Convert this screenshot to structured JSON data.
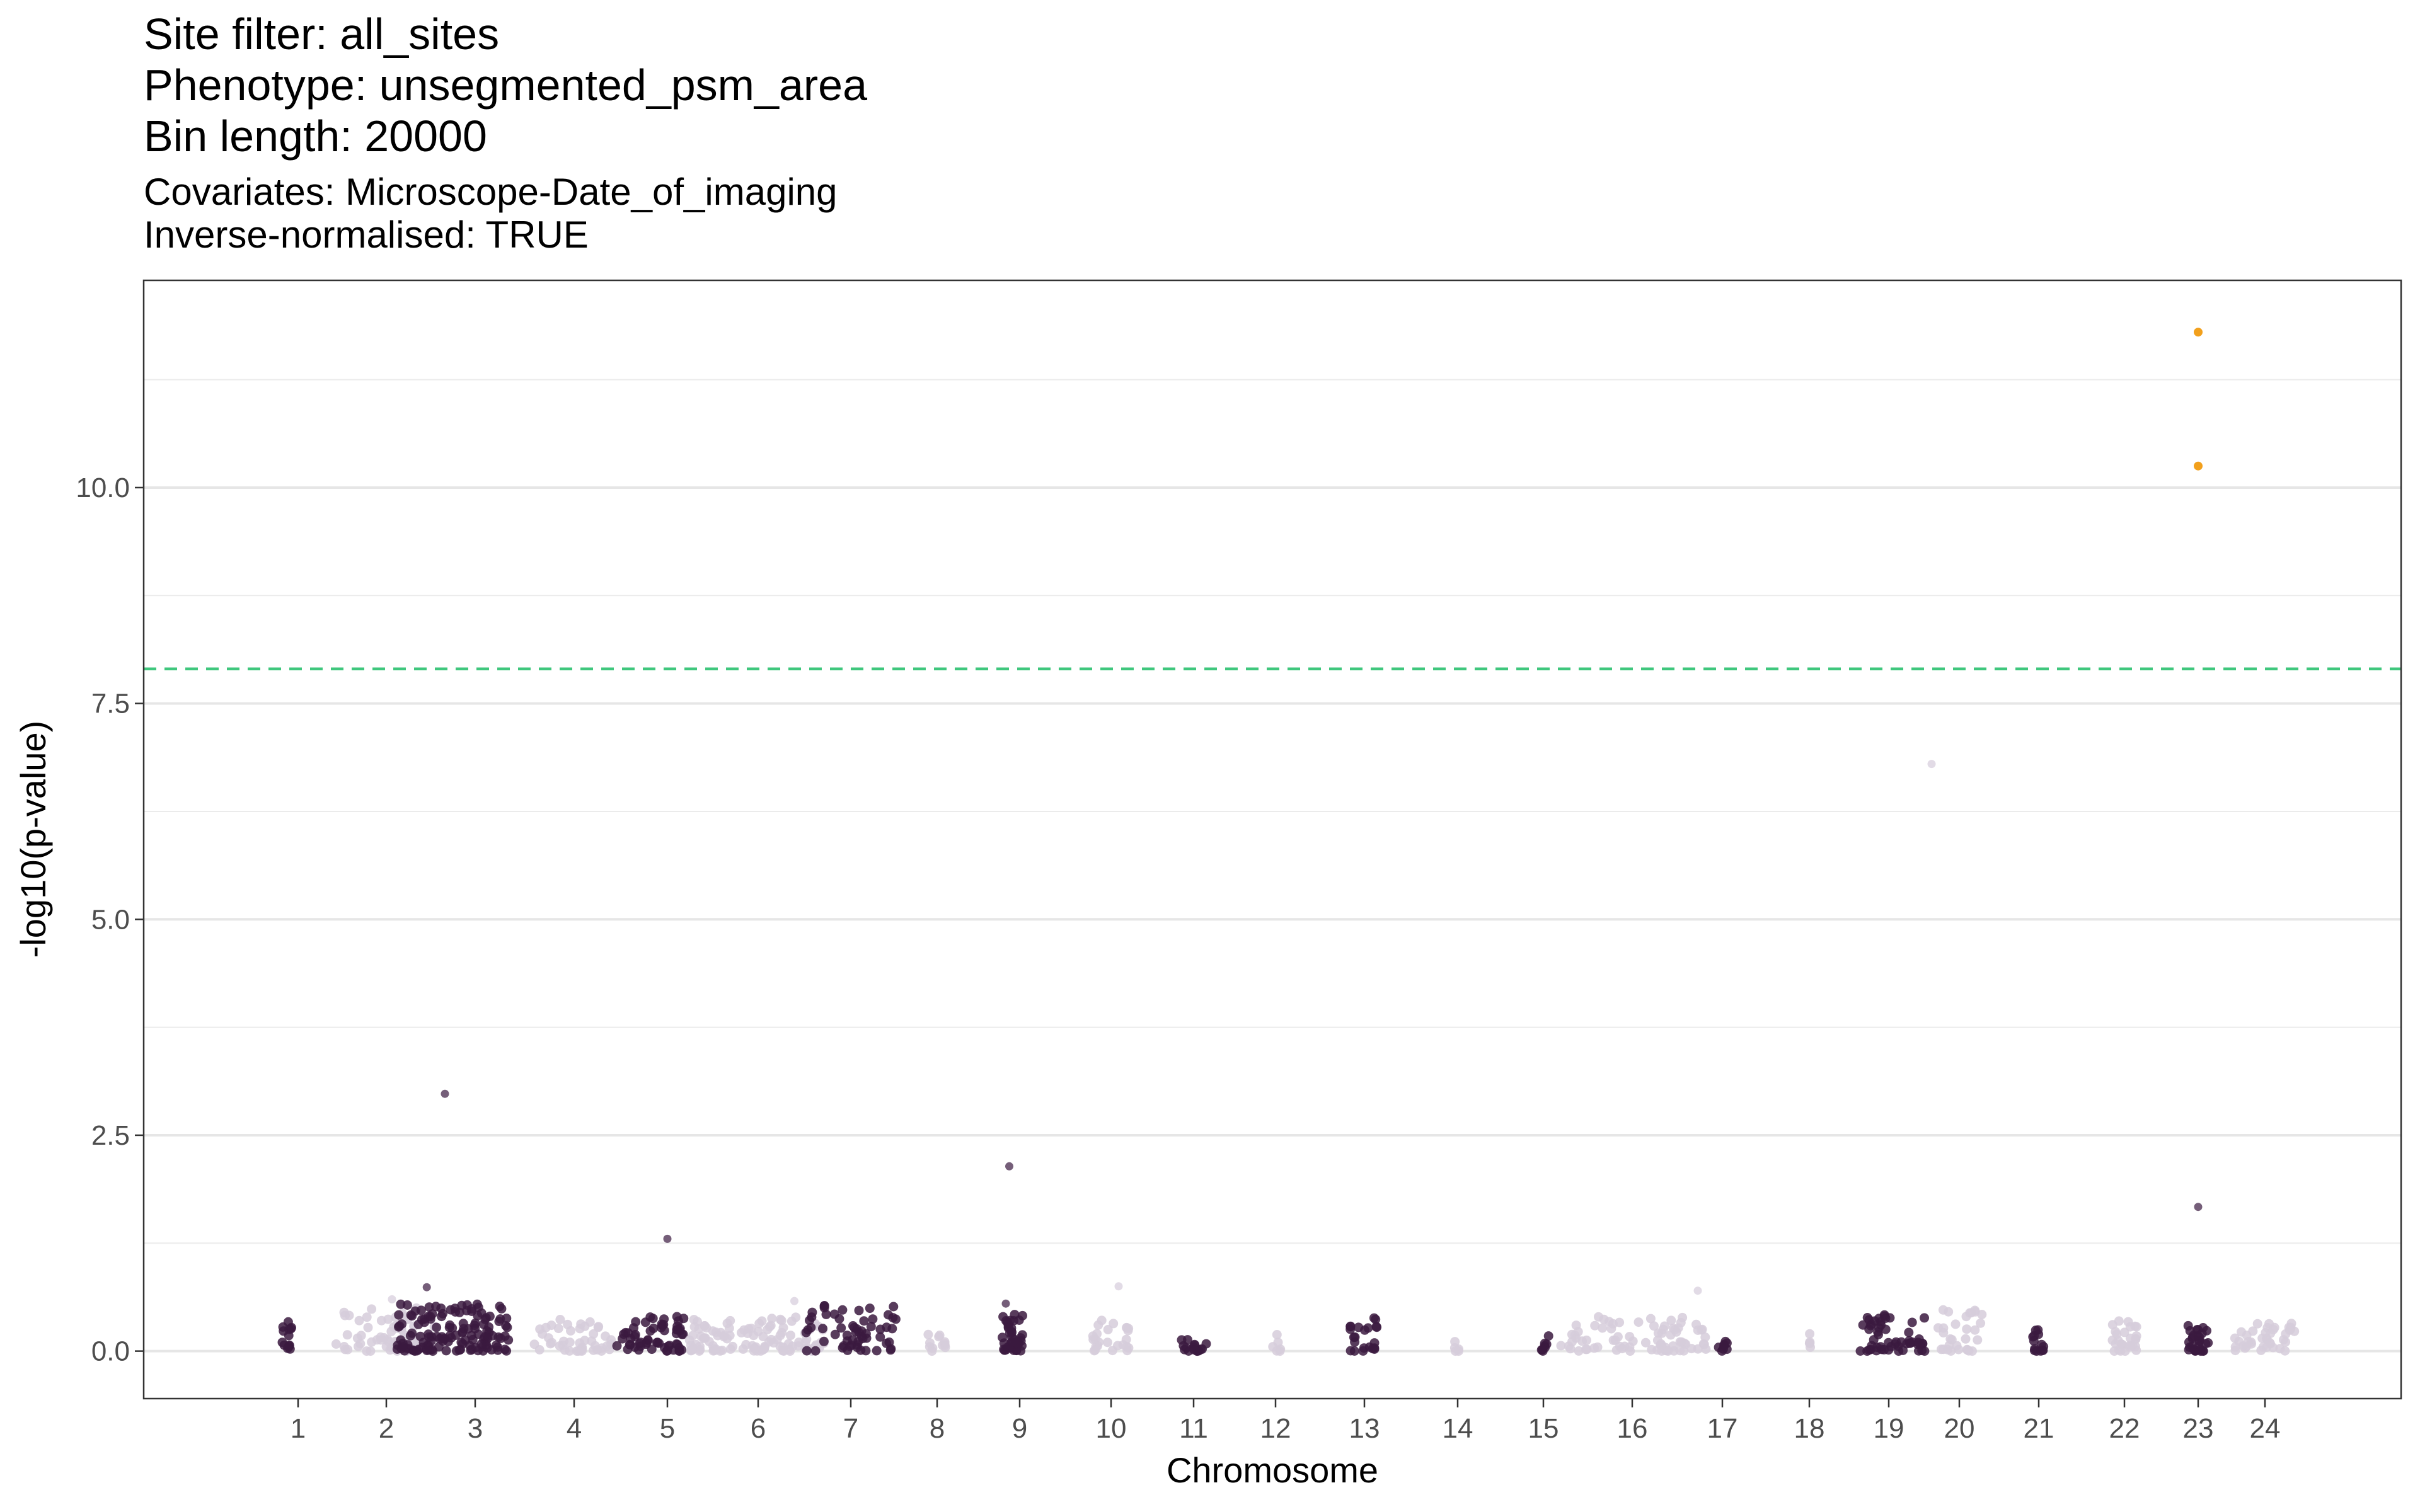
{
  "chart_data": {
    "type": "scatter",
    "title_lines": [
      "Site filter: all_sites",
      "Phenotype: unsegmented_psm_area",
      "Bin length: 20000"
    ],
    "subtitle_lines": [
      "Covariates: Microscope-Date_of_imaging",
      "Inverse-normalised: TRUE"
    ],
    "xlabel": "Chromosome",
    "ylabel": "-log10(p-value)",
    "x_tick_labels": [
      "1",
      "2",
      "3",
      "4",
      "5",
      "6",
      "7",
      "8",
      "9",
      "10",
      "11",
      "12",
      "13",
      "14",
      "15",
      "16",
      "17",
      "18",
      "19",
      "20",
      "21",
      "22",
      "23",
      "24"
    ],
    "y_ticks": [
      0.0,
      2.5,
      5.0,
      7.5,
      10.0
    ],
    "y_tick_labels": [
      "0.0",
      "2.5",
      "5.0",
      "7.5",
      "10.0"
    ],
    "ylim": [
      -0.55,
      12.4
    ],
    "grid": true,
    "threshold_line": {
      "y": 7.9,
      "color": "#3fc77d",
      "style": "dashed"
    },
    "colors": {
      "dark": "#3b1a40",
      "light": "#d6ccdb",
      "highlight": "#f2a01c"
    },
    "chromosomes": [
      {
        "chr": "1",
        "clusters": [
          {
            "x": 0.3,
            "w": 0.2,
            "n": 14,
            "max": 0.34
          }
        ],
        "outliers": []
      },
      {
        "chr": "2",
        "clusters": [
          {
            "x": 0.62,
            "w": 0.35,
            "n": 35,
            "max": 0.33
          },
          {
            "x": 0.5,
            "w": 0.9,
            "n": 40,
            "max": 0.5
          }
        ],
        "outliers": [
          {
            "x": 0.55,
            "y": 0.6
          }
        ]
      },
      {
        "chr": "3",
        "clusters": [
          {
            "x": 0.35,
            "w": 0.75,
            "n": 140,
            "max": 0.55
          }
        ],
        "outliers": [
          {
            "x": 0.3,
            "y": 2.98
          },
          {
            "x": 0.18,
            "y": 0.74
          }
        ]
      },
      {
        "chr": "4",
        "clusters": [
          {
            "x": 0.5,
            "w": 0.85,
            "n": 45,
            "max": 0.38
          }
        ],
        "outliers": []
      },
      {
        "chr": "5",
        "clusters": [
          {
            "x": 0.35,
            "w": 0.6,
            "n": 60,
            "max": 0.4
          }
        ],
        "outliers": [
          {
            "x": 0.5,
            "y": 1.3
          }
        ]
      },
      {
        "chr": "6",
        "clusters": [
          {
            "x": 0.5,
            "w": 0.95,
            "n": 110,
            "max": 0.42
          }
        ],
        "outliers": [
          {
            "x": 0.75,
            "y": 0.58
          }
        ]
      },
      {
        "chr": "7",
        "clusters": [
          {
            "x": 0.5,
            "w": 0.8,
            "n": 60,
            "max": 0.55
          }
        ],
        "outliers": []
      },
      {
        "chr": "8",
        "clusters": [
          {
            "x": 0.5,
            "w": 0.5,
            "n": 12,
            "max": 0.25
          }
        ],
        "outliers": []
      },
      {
        "chr": "9",
        "clusters": [
          {
            "x": 0.4,
            "w": 0.3,
            "n": 40,
            "max": 0.45
          }
        ],
        "outliers": [
          {
            "x": 0.35,
            "y": 2.14
          },
          {
            "x": 0.3,
            "y": 0.55
          }
        ]
      },
      {
        "chr": "10",
        "clusters": [
          {
            "x": 0.5,
            "w": 0.5,
            "n": 25,
            "max": 0.38
          }
        ],
        "outliers": [
          {
            "x": 0.6,
            "y": 0.75
          }
        ]
      },
      {
        "chr": "11",
        "clusters": [
          {
            "x": 0.5,
            "w": 0.5,
            "n": 16,
            "max": 0.15
          }
        ],
        "outliers": []
      },
      {
        "chr": "12",
        "clusters": [
          {
            "x": 0.5,
            "w": 0.3,
            "n": 6,
            "max": 0.2
          }
        ],
        "outliers": []
      },
      {
        "chr": "13",
        "clusters": [
          {
            "x": 0.5,
            "w": 0.6,
            "n": 22,
            "max": 0.42
          }
        ],
        "outliers": []
      },
      {
        "chr": "14",
        "clusters": [
          {
            "x": 0.5,
            "w": 0.25,
            "n": 5,
            "max": 0.12
          }
        ],
        "outliers": []
      },
      {
        "chr": "15",
        "clusters": [
          {
            "x": 0.55,
            "w": 0.2,
            "n": 8,
            "max": 0.22
          }
        ],
        "outliers": []
      },
      {
        "chr": "16",
        "clusters": [
          {
            "x": 0.5,
            "w": 0.9,
            "n": 80,
            "max": 0.4
          }
        ],
        "outliers": [
          {
            "x": 0.9,
            "y": 0.7
          }
        ]
      },
      {
        "chr": "17",
        "clusters": [
          {
            "x": 0.5,
            "w": 0.25,
            "n": 8,
            "max": 0.13
          }
        ],
        "outliers": []
      },
      {
        "chr": "18",
        "clusters": [
          {
            "x": 0.5,
            "w": 0.3,
            "n": 5,
            "max": 0.38
          }
        ],
        "outliers": []
      },
      {
        "chr": "19",
        "clusters": [
          {
            "x": 0.55,
            "w": 0.8,
            "n": 55,
            "max": 0.48
          }
        ],
        "outliers": []
      },
      {
        "chr": "20",
        "clusters": [
          {
            "x": 0.5,
            "w": 0.7,
            "n": 30,
            "max": 0.48
          }
        ],
        "outliers": [
          {
            "x": 0.1,
            "y": 6.8
          }
        ]
      },
      {
        "chr": "21",
        "clusters": [
          {
            "x": 0.5,
            "w": 0.3,
            "n": 14,
            "max": 0.26
          }
        ],
        "outliers": []
      },
      {
        "chr": "22",
        "clusters": [
          {
            "x": 0.5,
            "w": 0.45,
            "n": 28,
            "max": 0.38
          }
        ],
        "outliers": []
      },
      {
        "chr": "23",
        "clusters": [
          {
            "x": 0.5,
            "w": 0.5,
            "n": 30,
            "max": 0.3
          }
        ],
        "outliers": [
          {
            "x": 0.5,
            "y": 1.67
          }
        ]
      },
      {
        "chr": "24",
        "clusters": [
          {
            "x": 0.5,
            "w": 0.65,
            "n": 40,
            "max": 0.35
          }
        ],
        "outliers": []
      }
    ],
    "highlight_points": [
      {
        "chr": "23",
        "x": 0.5,
        "y": 11.8
      },
      {
        "chr": "23",
        "x": 0.5,
        "y": 10.25
      }
    ]
  }
}
